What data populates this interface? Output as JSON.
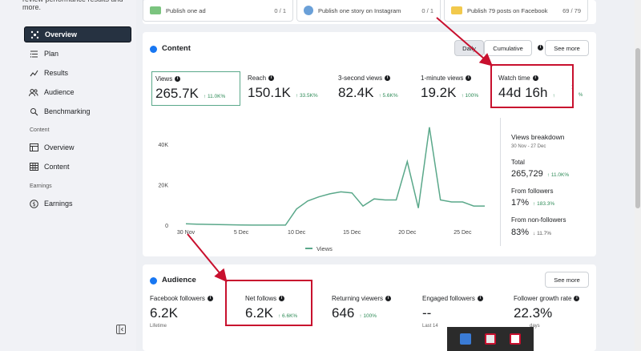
{
  "top_text": "review performance results and more.",
  "sidebar": {
    "nav": [
      {
        "label": "Overview",
        "icon": "overview-icon",
        "active": true
      },
      {
        "label": "Plan",
        "icon": "plan-icon"
      },
      {
        "label": "Results",
        "icon": "results-icon"
      },
      {
        "label": "Audience",
        "icon": "audience-icon"
      },
      {
        "label": "Benchmarking",
        "icon": "benchmarking-icon"
      }
    ],
    "content_section": "Content",
    "content_nav": [
      {
        "label": "Overview",
        "icon": "content-overview-icon"
      },
      {
        "label": "Content",
        "icon": "content-table-icon"
      }
    ],
    "earnings_section": "Earnings",
    "earnings_nav": [
      {
        "label": "Earnings",
        "icon": "dollar-icon"
      }
    ]
  },
  "goals": [
    {
      "label": "Publish one ad",
      "count": "0 / 1"
    },
    {
      "label": "Publish one story on Instagram",
      "count": "0 / 1"
    },
    {
      "label": "Publish 79 posts on Facebook",
      "count": "69 / 79"
    }
  ],
  "content": {
    "title": "Content",
    "daily": "Daily",
    "cumulative": "Cumulative",
    "see_more": "See more",
    "metrics": [
      {
        "label": "Views",
        "value": "265.7K",
        "change": "↑ 11.0K%"
      },
      {
        "label": "Reach",
        "value": "150.1K",
        "change": "↑ 33.5K%"
      },
      {
        "label": "3-second views",
        "value": "82.4K",
        "change": "↑ 5.6K%"
      },
      {
        "label": "1-minute views",
        "value": "19.2K",
        "change": "↑ 100%"
      },
      {
        "label": "Watch time",
        "value": "44d 16h",
        "change": "↑"
      }
    ],
    "overflow_text": "%"
  },
  "chart_data": {
    "type": "line",
    "x": [
      "30 Nov",
      "1 Dec",
      "2 Dec",
      "3 Dec",
      "4 Dec",
      "5 Dec",
      "6 Dec",
      "7 Dec",
      "8 Dec",
      "9 Dec",
      "10 Dec",
      "11 Dec",
      "12 Dec",
      "13 Dec",
      "14 Dec",
      "15 Dec",
      "16 Dec",
      "17 Dec",
      "18 Dec",
      "19 Dec",
      "20 Dec",
      "21 Dec",
      "22 Dec",
      "23 Dec",
      "24 Dec",
      "25 Dec",
      "26 Dec",
      "27 Dec"
    ],
    "x_tick_labels": [
      "30 Nov",
      "5 Dec",
      "10 Dec",
      "15 Dec",
      "20 Dec",
      "25 Dec"
    ],
    "series": [
      {
        "name": "Views",
        "color": "#5aa88a",
        "values": [
          700,
          500,
          400,
          300,
          200,
          100,
          50,
          30,
          20,
          30,
          8000,
          12000,
          14000,
          15500,
          16500,
          16000,
          9500,
          13000,
          12500,
          12500,
          31500,
          8500,
          48500,
          12500,
          11500,
          11500,
          9500,
          9500
        ]
      }
    ],
    "y_ticks": [
      "40K",
      "20K",
      "0"
    ],
    "ylim": [
      0,
      50000
    ],
    "grid": false,
    "legend": "bottom"
  },
  "breakdown": {
    "title": "Views breakdown",
    "range": "30 Nov - 27 Dec",
    "total_label": "Total",
    "total_value": "265,729",
    "total_change": "↑ 11.0K%",
    "followers_label": "From followers",
    "followers_value": "17%",
    "followers_change": "↑ 183.3%",
    "nonfollowers_label": "From non-followers",
    "nonfollowers_value": "83%",
    "nonfollowers_change": "↓ 11.7%"
  },
  "audience": {
    "title": "Audience",
    "see_more": "See more",
    "metrics": [
      {
        "label": "Facebook followers",
        "value": "6.2K",
        "change": "",
        "sub": "Lifetime"
      },
      {
        "label": "Net follows",
        "value": "6.2K",
        "change": "↑ 6.6K%",
        "sub": ""
      },
      {
        "label": "Returning viewers",
        "value": "646",
        "change": "↑ 100%",
        "sub": ""
      },
      {
        "label": "Engaged followers",
        "value": "--",
        "change": "",
        "sub": "Last 14"
      },
      {
        "label": "Follower growth rate",
        "value": "22.3%",
        "change": "",
        "sub": "days"
      }
    ]
  }
}
